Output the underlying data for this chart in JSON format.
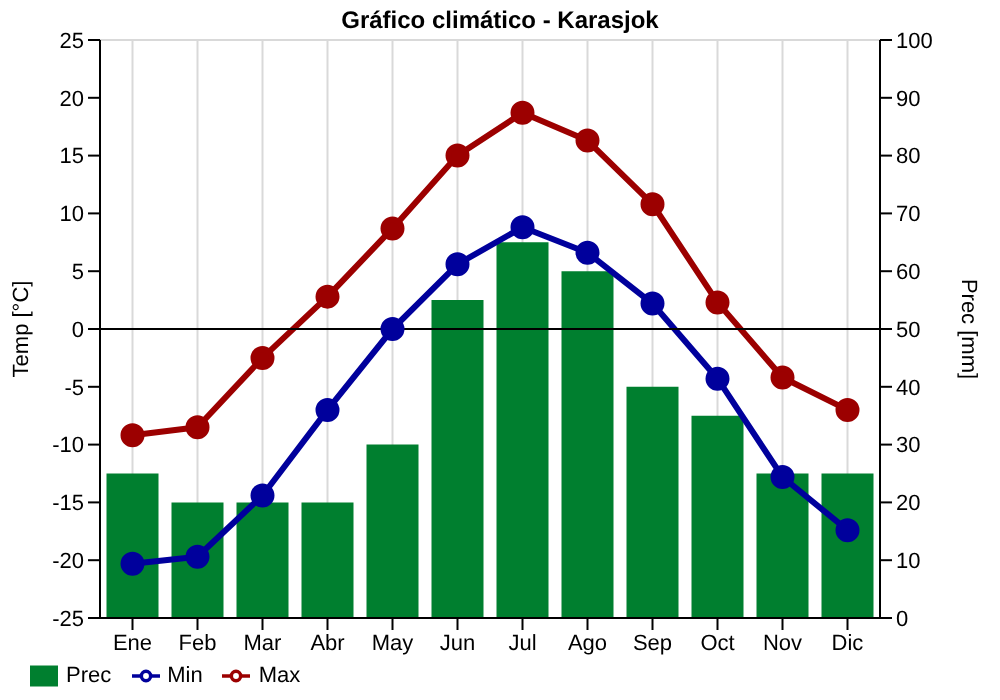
{
  "chart_data": {
    "type": "line",
    "title": "Gráfico climático - Karasjok",
    "ylabel": "Temp [°C]",
    "y2label": "Prec [mm]",
    "categories": [
      "Ene",
      "Feb",
      "Mar",
      "Abr",
      "May",
      "Jun",
      "Jul",
      "Ago",
      "Sep",
      "Oct",
      "Nov",
      "Dic"
    ],
    "series": [
      {
        "name": "Prec",
        "type": "bar",
        "axis": "y2",
        "color": "#007f2f",
        "values": [
          25,
          20,
          20,
          20,
          30,
          55,
          65,
          60,
          40,
          35,
          25,
          25
        ]
      },
      {
        "name": "Min",
        "color": "#00009c",
        "values": [
          -20.3,
          -19.7,
          -14.4,
          -7,
          0,
          5.6,
          8.8,
          6.6,
          2.2,
          -4.3,
          -12.8,
          -17.4
        ]
      },
      {
        "name": "Max",
        "color": "#9c0000",
        "values": [
          -9.2,
          -8.5,
          -2.5,
          2.8,
          8.7,
          15,
          18.7,
          16.3,
          10.8,
          2.3,
          -4.2,
          -7
        ]
      }
    ],
    "ylim": [
      -25,
      25
    ],
    "yticks": [
      -25,
      -20,
      -15,
      -10,
      -5,
      0,
      5,
      10,
      15,
      20,
      25
    ],
    "y2lim": [
      0,
      100
    ],
    "y2ticks": [
      0,
      10,
      20,
      30,
      40,
      50,
      60,
      70,
      80,
      90,
      100
    ],
    "ref_lines": [
      {
        "axis": "y",
        "value": 0,
        "color": "#000000"
      }
    ],
    "grid": true,
    "legend": "bottom left",
    "marker": "circle",
    "line_style": "solid"
  }
}
